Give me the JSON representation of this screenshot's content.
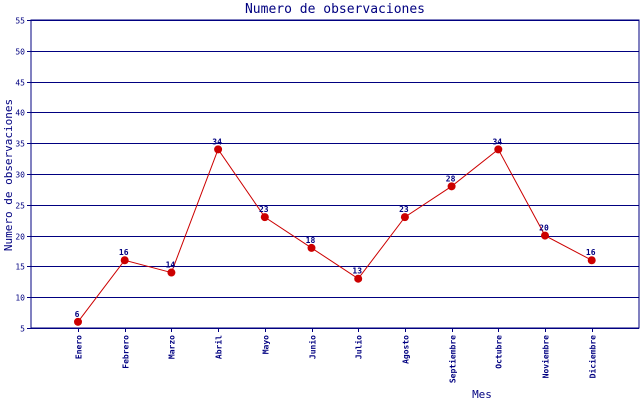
{
  "chart_data": {
    "type": "line",
    "title": "Numero de observaciones",
    "xlabel": "Mes",
    "ylabel": "Numero de observaciones",
    "categories": [
      "Enero",
      "Febrero",
      "Marzo",
      "Abril",
      "Mayo",
      "Junio",
      "Julio",
      "Agosto",
      "Septiembre",
      "Octubre",
      "Noviembre",
      "Diciembre"
    ],
    "series": [
      {
        "values": [
          6,
          16,
          14,
          34,
          23,
          18,
          13,
          23,
          28,
          34,
          20,
          16
        ]
      }
    ],
    "ylim": [
      5,
      55
    ],
    "yticks": [
      5,
      10,
      15,
      20,
      25,
      30,
      35,
      40,
      45,
      50,
      55
    ],
    "grid": true,
    "colors": {
      "line": "#cc0000",
      "marker": "#cc0000",
      "grid": "#000080",
      "axis": "#000080",
      "text": "#000080"
    }
  }
}
